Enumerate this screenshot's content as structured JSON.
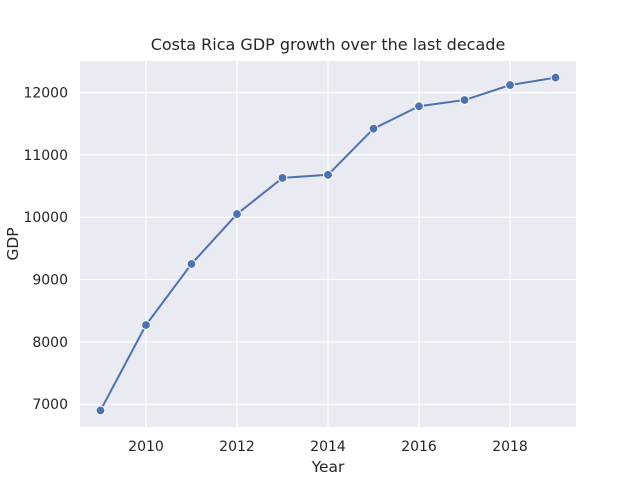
{
  "chart_data": {
    "type": "line",
    "title": "Costa Rica GDP growth over the last decade",
    "xlabel": "Year",
    "ylabel": "GDP",
    "x": [
      2009,
      2010,
      2011,
      2012,
      2013,
      2014,
      2015,
      2016,
      2017,
      2018,
      2019
    ],
    "series": [
      {
        "values": [
          6900,
          8270,
          9250,
          10050,
          10630,
          10680,
          11420,
          11780,
          11880,
          12120,
          12240
        ]
      }
    ],
    "xlim": [
      2008.55,
      2019.45
    ],
    "ylim": [
      6634,
      12506
    ],
    "xticks": [
      "2010",
      "2012",
      "2014",
      "2016",
      "2018"
    ],
    "yticks": [
      "7000",
      "8000",
      "9000",
      "10000",
      "11000",
      "12000"
    ],
    "grid": true,
    "legend": "none",
    "colors": {
      "background": "#eaeaf2",
      "grid": "#ffffff",
      "line": "#4c72b0",
      "text": "#262626"
    }
  }
}
